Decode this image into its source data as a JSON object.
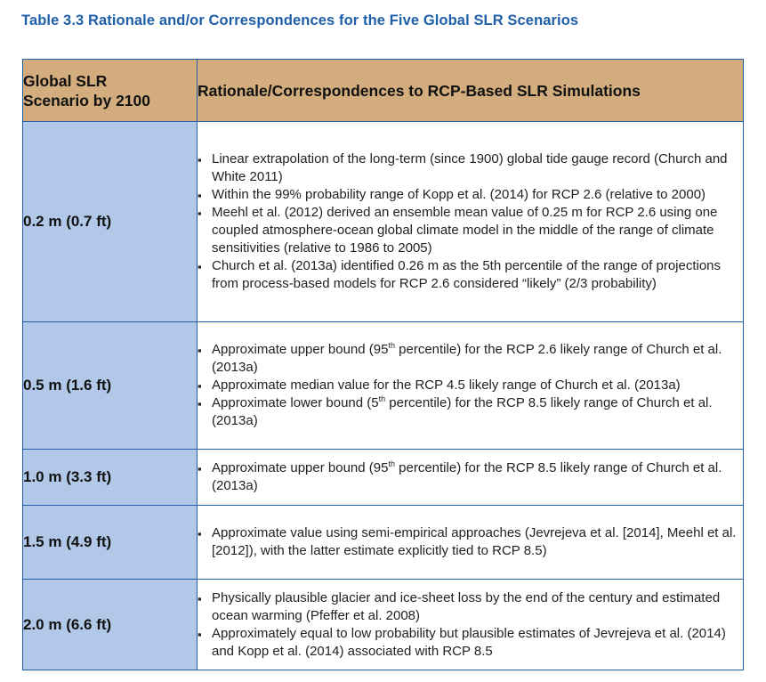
{
  "caption": "Table 3.3  Rationale and/or Correspondences for the Five Global SLR Scenarios",
  "header": {
    "col1_line1": "Global SLR",
    "col1_line2": "Scenario by 2100",
    "col2": "Rationale/Correspondences to RCP-Based SLR Simulations"
  },
  "rows": [
    {
      "scenario": "0.2 m (0.7 ft)",
      "bullets": [
        "Linear extrapolation of the long-term (since 1900) global tide gauge record (Church and White 2011)",
        "Within the 99% probability range of Kopp et al. (2014) for RCP 2.6 (relative to 2000)",
        "Meehl et al. (2012) derived an ensemble mean value of 0.25 m for RCP 2.6 using one coupled atmosphere-ocean global climate model in the middle of the range of climate sensitivities (relative to 1986 to 2005)",
        "Church et al. (2013a) identified 0.26 m as the 5th percentile of the range of projections from process-based models for RCP 2.6 considered “likely” (2/3 probability)"
      ]
    },
    {
      "scenario": "0.5 m (1.6 ft)",
      "bullets": [
        {
          "pre": "Approximate upper bound (95",
          "sup": "th",
          "post": " percentile) for the RCP 2.6 likely range of Church et al. (2013a)"
        },
        {
          "pre": "Approximate median value for the RCP 4.5 likely range of Church et al. (2013a)",
          "sup": "",
          "post": ""
        },
        {
          "pre": "Approximate lower bound (5",
          "sup": "th",
          "post": " percentile) for the RCP 8.5 likely range of Church et al. (2013a)"
        }
      ]
    },
    {
      "scenario": "1.0 m (3.3 ft)",
      "bullets": [
        {
          "pre": "Approximate upper bound (95",
          "sup": "th",
          "post": " percentile) for the RCP 8.5 likely range of Church et al. (2013a)"
        }
      ]
    },
    {
      "scenario": "1.5 m (4.9 ft)",
      "bullets": [
        "Approximate value using semi-empirical approaches (Jevrejeva et al. [2014], Meehl et al. [2012]), with the latter estimate explicitly tied to RCP 8.5)"
      ]
    },
    {
      "scenario": "2.0 m (6.6 ft)",
      "bullets": [
        "Physically plausible glacier and ice-sheet loss by the end of the century and estimated ocean warming (Pfeffer et al. 2008)",
        "Approximately equal to low probability but plausible estimates of Jevrejeva et al. (2014) and Kopp et al. (2014) associated with RCP 8.5"
      ]
    }
  ]
}
